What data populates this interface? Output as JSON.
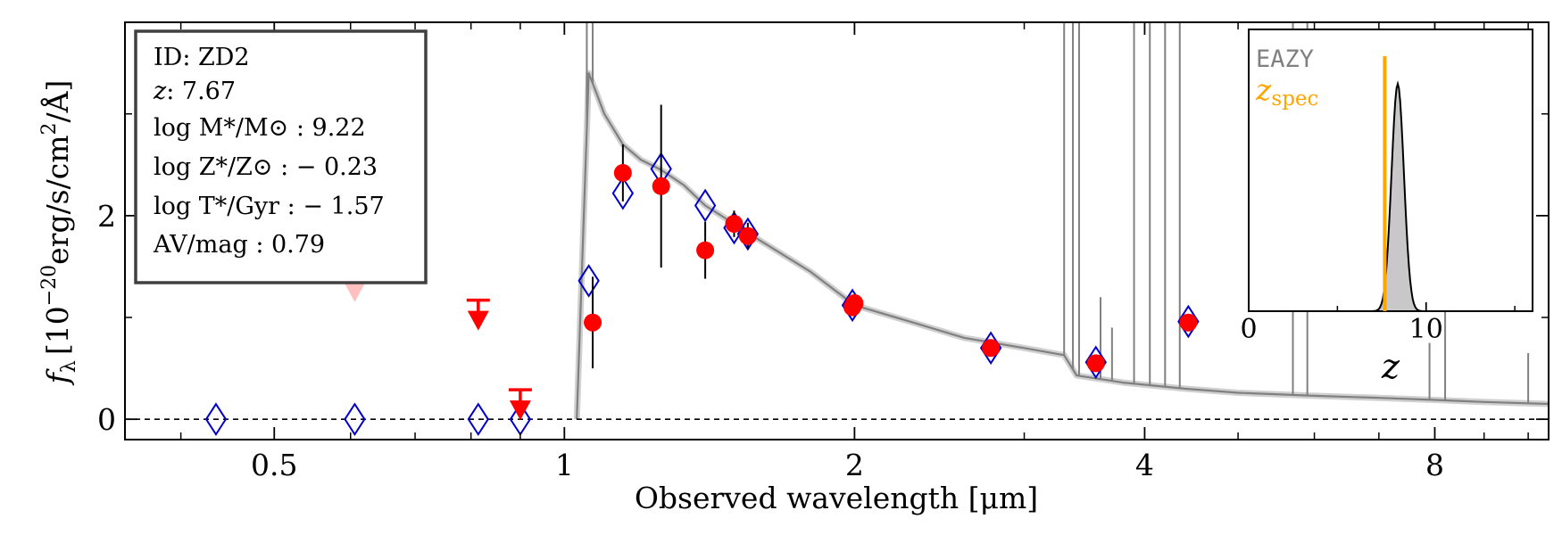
{
  "chart_data": {
    "type": "scatter",
    "xlabel": "Observed wavelength [μm]",
    "ylabel": "f_λ [10^-20 erg/s/cm²/Å]",
    "ylabel_parts": {
      "f": "f",
      "sub": "λ",
      "base": "[10",
      "exp1": "−20",
      "units": "erg/s/cm",
      "exp2": "2",
      "tail": "/Å]"
    },
    "x_scale": "log",
    "xlim": [
      0.35,
      10.5
    ],
    "ylim": [
      -0.2,
      3.9
    ],
    "x_ticks": [
      {
        "v": 0.5,
        "label": "0.5"
      },
      {
        "v": 1,
        "label": "1"
      },
      {
        "v": 2,
        "label": "2"
      },
      {
        "v": 4,
        "label": "4"
      },
      {
        "v": 8,
        "label": "8"
      }
    ],
    "x_minor_ticks": [
      0.4,
      0.6,
      0.7,
      0.8,
      0.9,
      3,
      5,
      6,
      7,
      9,
      10
    ],
    "y_ticks": [
      {
        "v": 0,
        "label": "0"
      },
      {
        "v": 2,
        "label": "2"
      }
    ],
    "zero_line": 0,
    "info_box": {
      "id": "ID: ZD2",
      "z_label": "z",
      "z_value": ": 7.67",
      "mass": "log M*/M⊙ : 9.22",
      "metal": "log Z*/Z⊙ : − 0.23",
      "age": "log T*/Gyr : − 1.57",
      "dust": "AV/mag : 0.79"
    },
    "observed_points": [
      {
        "x": 1.07,
        "y": 0.95,
        "err": 0.45
      },
      {
        "x": 1.15,
        "y": 2.42,
        "err": 0.28
      },
      {
        "x": 1.26,
        "y": 2.29,
        "err": 0.8
      },
      {
        "x": 1.4,
        "y": 1.66,
        "err": 0.28
      },
      {
        "x": 1.5,
        "y": 1.92,
        "err": 0.13
      },
      {
        "x": 1.55,
        "y": 1.8,
        "err": 0.13
      },
      {
        "x": 1.99,
        "y": 1.1,
        "err": 0.06
      },
      {
        "x": 2.0,
        "y": 1.14,
        "err": 0.06
      },
      {
        "x": 2.77,
        "y": 0.7,
        "err": 0.05
      },
      {
        "x": 3.56,
        "y": 0.55,
        "err": 0.05
      },
      {
        "x": 4.44,
        "y": 0.95,
        "err": 0.05
      }
    ],
    "upper_limits": [
      {
        "x": 0.606,
        "y": 1.45,
        "faded": true
      },
      {
        "x": 0.814,
        "y": 1.17,
        "faded": false
      },
      {
        "x": 0.9,
        "y": 0.29,
        "faded": false
      }
    ],
    "model_photometry": [
      {
        "x": 0.435,
        "y": 0.0
      },
      {
        "x": 0.606,
        "y": 0.0
      },
      {
        "x": 0.814,
        "y": 0.0
      },
      {
        "x": 0.9,
        "y": 0.0
      },
      {
        "x": 1.06,
        "y": 1.36
      },
      {
        "x": 1.15,
        "y": 2.22
      },
      {
        "x": 1.26,
        "y": 2.46
      },
      {
        "x": 1.4,
        "y": 2.1
      },
      {
        "x": 1.5,
        "y": 1.88
      },
      {
        "x": 1.55,
        "y": 1.82
      },
      {
        "x": 1.99,
        "y": 1.12
      },
      {
        "x": 2.77,
        "y": 0.7
      },
      {
        "x": 3.56,
        "y": 0.56
      },
      {
        "x": 4.44,
        "y": 0.96
      }
    ],
    "model_spectrum": {
      "continuum": [
        [
          1.03,
          0.0
        ],
        [
          1.06,
          3.4
        ],
        [
          1.08,
          3.2
        ],
        [
          1.1,
          3.0
        ],
        [
          1.15,
          2.7
        ],
        [
          1.2,
          2.55
        ],
        [
          1.26,
          2.45
        ],
        [
          1.33,
          2.3
        ],
        [
          1.4,
          2.1
        ],
        [
          1.5,
          1.92
        ],
        [
          1.6,
          1.75
        ],
        [
          1.8,
          1.45
        ],
        [
          2.0,
          1.12
        ],
        [
          2.3,
          0.95
        ],
        [
          2.6,
          0.8
        ],
        [
          3.0,
          0.7
        ],
        [
          3.3,
          0.63
        ],
        [
          3.4,
          0.43
        ],
        [
          3.8,
          0.36
        ],
        [
          4.4,
          0.3
        ],
        [
          5.0,
          0.26
        ],
        [
          6.0,
          0.23
        ],
        [
          7.0,
          0.21
        ],
        [
          8.0,
          0.19
        ],
        [
          9.0,
          0.17
        ],
        [
          10.5,
          0.15
        ]
      ],
      "lines": [
        {
          "x": 1.055,
          "top": 3.9
        },
        {
          "x": 1.07,
          "top": 3.9
        },
        {
          "x": 3.3,
          "top": 3.9
        },
        {
          "x": 3.37,
          "top": 3.9
        },
        {
          "x": 3.42,
          "top": 3.9
        },
        {
          "x": 3.6,
          "top": 1.2
        },
        {
          "x": 3.7,
          "top": 0.9
        },
        {
          "x": 3.9,
          "top": 3.9
        },
        {
          "x": 4.05,
          "top": 3.9
        },
        {
          "x": 4.2,
          "top": 3.9
        },
        {
          "x": 4.35,
          "top": 3.9
        },
        {
          "x": 5.7,
          "top": 3.9
        },
        {
          "x": 5.9,
          "top": 3.9
        },
        {
          "x": 7.9,
          "top": 0.75
        },
        {
          "x": 8.2,
          "top": 1.5
        },
        {
          "x": 10.0,
          "top": 0.65
        }
      ]
    },
    "inset": {
      "label_eazy": "EAZY",
      "label_zspec_main": "z",
      "label_zspec_sub": "spec",
      "xlabel": "z",
      "xlim": [
        0,
        16
      ],
      "x_ticks": [
        {
          "v": 0,
          "label": "0"
        },
        {
          "v": 10,
          "label": "10"
        }
      ],
      "z_spec": 7.67,
      "pdf_peak": 8.4,
      "pdf_sigma": 0.35
    },
    "colors": {
      "observed": "#ff0000",
      "observed_faded": "#ffc0c0",
      "model_photometry": "#0000cc",
      "model_spectrum": "#808080",
      "z_spec": "#ffa500",
      "pdf_fill": "#c8c8c8",
      "eazy_text": "#808080"
    }
  }
}
